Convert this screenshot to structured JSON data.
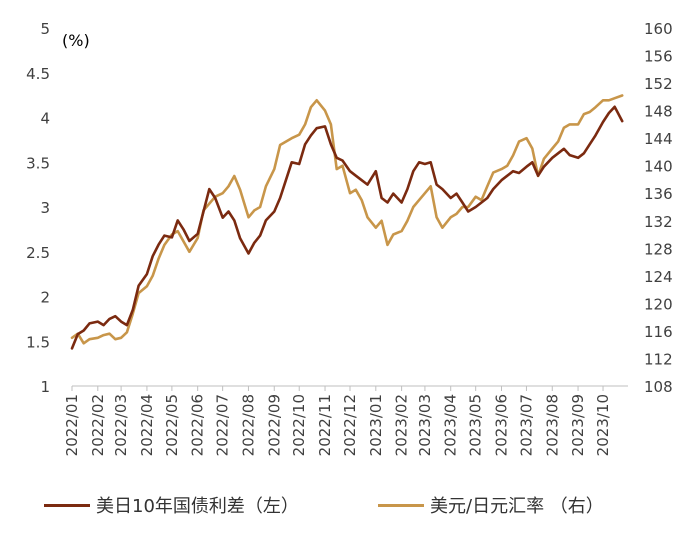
{
  "chart_data": {
    "type": "line",
    "left_axis_unit": "(%)",
    "x": [
      "2022/01",
      "2022/02",
      "2022/03",
      "2022/04",
      "2022/05",
      "2022/06",
      "2022/07",
      "2022/08",
      "2022/09",
      "2022/10",
      "2022/11",
      "2022/12",
      "2023/01",
      "2023/02",
      "2023/03",
      "2023/04",
      "2023/05",
      "2023/06",
      "2023/07",
      "2023/08",
      "2023/09",
      "2023/10"
    ],
    "y_left": {
      "ylim": [
        1,
        5
      ],
      "ticks": [
        "1",
        "1.5",
        "2",
        "2.5",
        "3",
        "3.5",
        "4",
        "4.5",
        "5"
      ]
    },
    "y_right": {
      "ylim": [
        108,
        160
      ],
      "ticks": [
        "108",
        "112",
        "116",
        "120",
        "124",
        "128",
        "132",
        "136",
        "140",
        "144",
        "148",
        "152",
        "156",
        "160"
      ]
    },
    "series": [
      {
        "name": "美日10年国债利差（左）",
        "axis": "left",
        "color": "#7B2A10",
        "points": [
          [
            "2022/01/01",
            1.42
          ],
          [
            "2022/01/08",
            1.58
          ],
          [
            "2022/01/15",
            1.62
          ],
          [
            "2022/01/22",
            1.7
          ],
          [
            "2022/02/01",
            1.72
          ],
          [
            "2022/02/08",
            1.68
          ],
          [
            "2022/02/15",
            1.75
          ],
          [
            "2022/02/22",
            1.78
          ],
          [
            "2022/03/01",
            1.72
          ],
          [
            "2022/03/08",
            1.68
          ],
          [
            "2022/03/15",
            1.85
          ],
          [
            "2022/03/22",
            2.12
          ],
          [
            "2022/04/01",
            2.25
          ],
          [
            "2022/04/08",
            2.45
          ],
          [
            "2022/04/15",
            2.58
          ],
          [
            "2022/04/22",
            2.68
          ],
          [
            "2022/05/01",
            2.66
          ],
          [
            "2022/05/08",
            2.85
          ],
          [
            "2022/05/15",
            2.75
          ],
          [
            "2022/05/22",
            2.62
          ],
          [
            "2022/06/01",
            2.7
          ],
          [
            "2022/06/08",
            2.95
          ],
          [
            "2022/06/15",
            3.2
          ],
          [
            "2022/06/22",
            3.1
          ],
          [
            "2022/07/01",
            2.88
          ],
          [
            "2022/07/08",
            2.95
          ],
          [
            "2022/07/15",
            2.85
          ],
          [
            "2022/07/22",
            2.65
          ],
          [
            "2022/08/01",
            2.48
          ],
          [
            "2022/08/08",
            2.6
          ],
          [
            "2022/08/15",
            2.68
          ],
          [
            "2022/08/22",
            2.85
          ],
          [
            "2022/09/01",
            2.95
          ],
          [
            "2022/09/08",
            3.1
          ],
          [
            "2022/09/15",
            3.3
          ],
          [
            "2022/09/22",
            3.5
          ],
          [
            "2022/10/01",
            3.48
          ],
          [
            "2022/10/08",
            3.7
          ],
          [
            "2022/10/15",
            3.8
          ],
          [
            "2022/10/22",
            3.88
          ],
          [
            "2022/11/01",
            3.9
          ],
          [
            "2022/11/08",
            3.7
          ],
          [
            "2022/11/15",
            3.55
          ],
          [
            "2022/11/22",
            3.52
          ],
          [
            "2022/12/01",
            3.4
          ],
          [
            "2022/12/08",
            3.35
          ],
          [
            "2022/12/15",
            3.3
          ],
          [
            "2022/12/22",
            3.25
          ],
          [
            "2023/01/01",
            3.4
          ],
          [
            "2023/01/08",
            3.1
          ],
          [
            "2023/01/15",
            3.05
          ],
          [
            "2023/01/22",
            3.15
          ],
          [
            "2023/02/01",
            3.05
          ],
          [
            "2023/02/08",
            3.2
          ],
          [
            "2023/02/15",
            3.4
          ],
          [
            "2023/02/22",
            3.5
          ],
          [
            "2023/03/01",
            3.48
          ],
          [
            "2023/03/08",
            3.5
          ],
          [
            "2023/03/15",
            3.25
          ],
          [
            "2023/03/22",
            3.2
          ],
          [
            "2023/04/01",
            3.1
          ],
          [
            "2023/04/08",
            3.15
          ],
          [
            "2023/04/15",
            3.05
          ],
          [
            "2023/04/22",
            2.95
          ],
          [
            "2023/05/01",
            3.0
          ],
          [
            "2023/05/08",
            3.05
          ],
          [
            "2023/05/15",
            3.1
          ],
          [
            "2023/05/22",
            3.2
          ],
          [
            "2023/06/01",
            3.3
          ],
          [
            "2023/06/08",
            3.35
          ],
          [
            "2023/06/15",
            3.4
          ],
          [
            "2023/06/22",
            3.38
          ],
          [
            "2023/07/01",
            3.45
          ],
          [
            "2023/07/08",
            3.5
          ],
          [
            "2023/07/15",
            3.35
          ],
          [
            "2023/07/22",
            3.45
          ],
          [
            "2023/08/01",
            3.55
          ],
          [
            "2023/08/08",
            3.6
          ],
          [
            "2023/08/15",
            3.65
          ],
          [
            "2023/08/22",
            3.58
          ],
          [
            "2023/09/01",
            3.55
          ],
          [
            "2023/09/08",
            3.6
          ],
          [
            "2023/09/15",
            3.7
          ],
          [
            "2023/09/22",
            3.8
          ],
          [
            "2023/10/01",
            3.95
          ],
          [
            "2023/10/08",
            4.05
          ],
          [
            "2023/10/15",
            4.12
          ],
          [
            "2023/10/24",
            3.96
          ]
        ]
      },
      {
        "name": "美元/日元汇率 （右）",
        "axis": "right",
        "color": "#C8964A",
        "points": [
          [
            "2022/01/01",
            115.0
          ],
          [
            "2022/01/08",
            115.6
          ],
          [
            "2022/01/15",
            114.2
          ],
          [
            "2022/01/22",
            114.8
          ],
          [
            "2022/02/01",
            115.0
          ],
          [
            "2022/02/08",
            115.4
          ],
          [
            "2022/02/15",
            115.6
          ],
          [
            "2022/02/22",
            114.8
          ],
          [
            "2022/03/01",
            115.0
          ],
          [
            "2022/03/08",
            115.8
          ],
          [
            "2022/03/15",
            118.5
          ],
          [
            "2022/03/22",
            121.5
          ],
          [
            "2022/04/01",
            122.5
          ],
          [
            "2022/04/08",
            124.0
          ],
          [
            "2022/04/15",
            126.5
          ],
          [
            "2022/04/22",
            128.5
          ],
          [
            "2022/05/01",
            130.0
          ],
          [
            "2022/05/08",
            130.5
          ],
          [
            "2022/05/15",
            129.0
          ],
          [
            "2022/05/22",
            127.5
          ],
          [
            "2022/06/01",
            129.5
          ],
          [
            "2022/06/08",
            133.5
          ],
          [
            "2022/06/15",
            134.5
          ],
          [
            "2022/06/22",
            135.5
          ],
          [
            "2022/07/01",
            136.0
          ],
          [
            "2022/07/08",
            137.0
          ],
          [
            "2022/07/15",
            138.5
          ],
          [
            "2022/07/22",
            136.5
          ],
          [
            "2022/08/01",
            132.5
          ],
          [
            "2022/08/08",
            133.5
          ],
          [
            "2022/08/15",
            134.0
          ],
          [
            "2022/08/22",
            137.0
          ],
          [
            "2022/09/01",
            139.5
          ],
          [
            "2022/09/08",
            143.0
          ],
          [
            "2022/09/15",
            143.5
          ],
          [
            "2022/09/22",
            144.0
          ],
          [
            "2022/10/01",
            144.5
          ],
          [
            "2022/10/08",
            146.0
          ],
          [
            "2022/10/15",
            148.5
          ],
          [
            "2022/10/22",
            149.5
          ],
          [
            "2022/11/01",
            148.0
          ],
          [
            "2022/11/08",
            146.0
          ],
          [
            "2022/11/15",
            139.5
          ],
          [
            "2022/11/22",
            140.0
          ],
          [
            "2022/12/01",
            136.0
          ],
          [
            "2022/12/08",
            136.5
          ],
          [
            "2022/12/15",
            135.0
          ],
          [
            "2022/12/22",
            132.5
          ],
          [
            "2023/01/01",
            131.0
          ],
          [
            "2023/01/08",
            132.0
          ],
          [
            "2023/01/15",
            128.5
          ],
          [
            "2023/01/22",
            130.0
          ],
          [
            "2023/02/01",
            130.5
          ],
          [
            "2023/02/08",
            132.0
          ],
          [
            "2023/02/15",
            134.0
          ],
          [
            "2023/02/22",
            135.0
          ],
          [
            "2023/03/01",
            136.0
          ],
          [
            "2023/03/08",
            137.0
          ],
          [
            "2023/03/15",
            132.5
          ],
          [
            "2023/03/22",
            131.0
          ],
          [
            "2023/04/01",
            132.5
          ],
          [
            "2023/04/08",
            133.0
          ],
          [
            "2023/04/15",
            134.0
          ],
          [
            "2023/04/22",
            134.0
          ],
          [
            "2023/05/01",
            135.5
          ],
          [
            "2023/05/08",
            135.0
          ],
          [
            "2023/05/15",
            137.0
          ],
          [
            "2023/05/22",
            139.0
          ],
          [
            "2023/06/01",
            139.5
          ],
          [
            "2023/06/08",
            140.0
          ],
          [
            "2023/06/15",
            141.5
          ],
          [
            "2023/06/22",
            143.5
          ],
          [
            "2023/07/01",
            144.0
          ],
          [
            "2023/07/08",
            142.5
          ],
          [
            "2023/07/15",
            138.5
          ],
          [
            "2023/07/22",
            141.0
          ],
          [
            "2023/08/01",
            142.5
          ],
          [
            "2023/08/08",
            143.5
          ],
          [
            "2023/08/15",
            145.5
          ],
          [
            "2023/08/22",
            146.0
          ],
          [
            "2023/09/01",
            146.0
          ],
          [
            "2023/09/08",
            147.5
          ],
          [
            "2023/09/15",
            147.8
          ],
          [
            "2023/09/22",
            148.5
          ],
          [
            "2023/10/01",
            149.5
          ],
          [
            "2023/10/08",
            149.5
          ],
          [
            "2023/10/15",
            149.8
          ],
          [
            "2023/10/24",
            150.2
          ]
        ]
      }
    ],
    "grid": false,
    "legend_position": "bottom"
  }
}
